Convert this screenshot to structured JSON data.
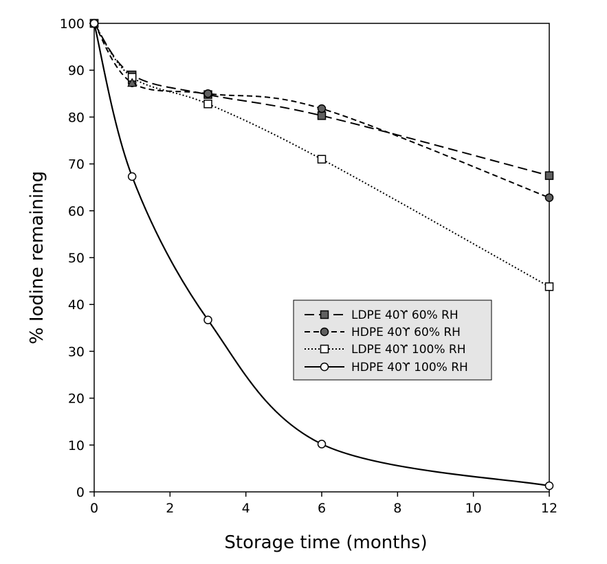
{
  "chart_data": {
    "type": "line",
    "title": "",
    "xlabel": "Storage time (months)",
    "ylabel": "% Iodine remaining",
    "xlim": [
      0,
      12
    ],
    "ylim": [
      0,
      100
    ],
    "xticks": [
      0,
      2,
      4,
      6,
      8,
      10,
      12
    ],
    "yticks": [
      0,
      10,
      20,
      30,
      40,
      50,
      60,
      70,
      80,
      90,
      100
    ],
    "grid": false,
    "legend_position": "center-right",
    "series": [
      {
        "name": "LDPE 40ϒ 60% RH",
        "x": [
          0,
          1,
          3,
          6,
          12
        ],
        "y": [
          100,
          89,
          84.8,
          80.3,
          67.5
        ],
        "line_style": "long-dash",
        "marker": "square",
        "marker_fill": "#606060"
      },
      {
        "name": "HDPE 40ϒ 60% RH",
        "x": [
          0,
          1,
          3,
          6,
          12
        ],
        "y": [
          100,
          87.3,
          85,
          81.8,
          62.8
        ],
        "line_style": "short-dash",
        "marker": "circle",
        "marker_fill": "#606060"
      },
      {
        "name": "LDPE 40ϒ 100% RH",
        "x": [
          0,
          1,
          3,
          6,
          12
        ],
        "y": [
          100,
          88.5,
          82.8,
          71,
          43.8
        ],
        "line_style": "dotted",
        "marker": "square",
        "marker_fill": "#ffffff"
      },
      {
        "name": "HDPE 40ϒ 100% RH",
        "x": [
          0,
          1,
          3,
          6,
          12
        ],
        "y": [
          100,
          67.3,
          36.7,
          10.2,
          1.3
        ],
        "line_style": "solid",
        "marker": "circle",
        "marker_fill": "#ffffff"
      }
    ]
  }
}
